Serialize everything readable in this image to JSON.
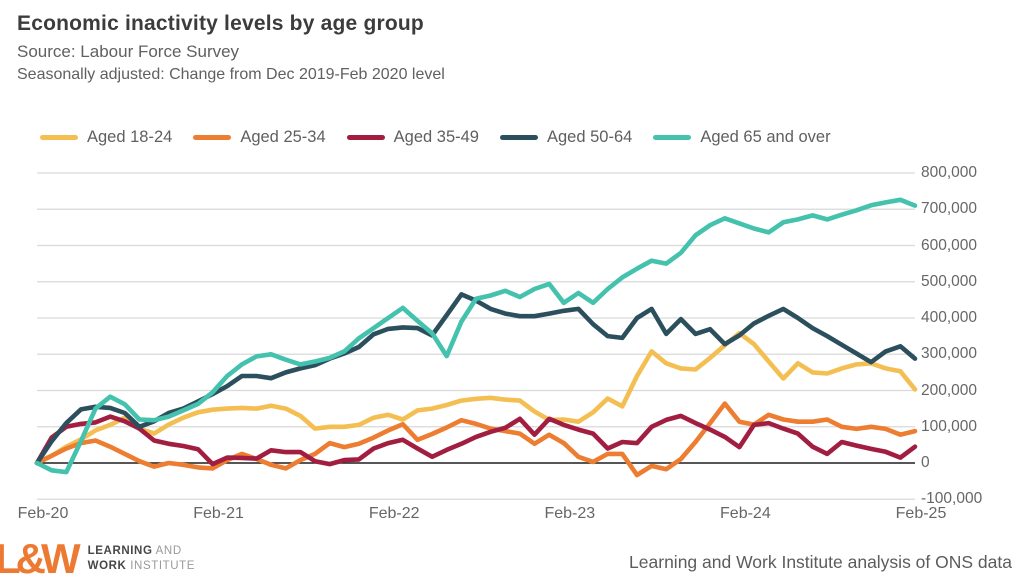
{
  "header": {
    "title": "Economic inactivity levels by age group",
    "subtitle": "Source: Labour Force Survey",
    "note": "Seasonally adjusted: Change from Dec 2019-Feb 2020 level"
  },
  "legend": [
    {
      "label": "Aged 18-24",
      "color": "#F4BF52"
    },
    {
      "label": "Aged 25-34",
      "color": "#ED7D31"
    },
    {
      "label": "Aged 35-49",
      "color": "#A21E41"
    },
    {
      "label": "Aged 50-64",
      "color": "#2C4F5E"
    },
    {
      "label": "Aged 65 and over",
      "color": "#44C2AE"
    }
  ],
  "chart_data": {
    "type": "line",
    "title": "Economic inactivity levels by age group",
    "x": [
      "Feb-20",
      "Mar-20",
      "Apr-20",
      "May-20",
      "Jun-20",
      "Jul-20",
      "Aug-20",
      "Sep-20",
      "Oct-20",
      "Nov-20",
      "Dec-20",
      "Jan-21",
      "Feb-21",
      "Mar-21",
      "Apr-21",
      "May-21",
      "Jun-21",
      "Jul-21",
      "Aug-21",
      "Sep-21",
      "Oct-21",
      "Nov-21",
      "Dec-21",
      "Jan-22",
      "Feb-22",
      "Mar-22",
      "Apr-22",
      "May-22",
      "Jun-22",
      "Jul-22",
      "Aug-22",
      "Sep-22",
      "Oct-22",
      "Nov-22",
      "Dec-22",
      "Jan-23",
      "Feb-23",
      "Mar-23",
      "Apr-23",
      "May-23",
      "Jun-23",
      "Jul-23",
      "Aug-23",
      "Sep-23",
      "Oct-23",
      "Nov-23",
      "Dec-23",
      "Jan-24",
      "Feb-24",
      "Mar-24",
      "Apr-24",
      "May-24",
      "Jun-24",
      "Jul-24",
      "Aug-24",
      "Sep-24",
      "Oct-24",
      "Nov-24",
      "Dec-24",
      "Jan-25",
      "Feb-25"
    ],
    "x_tick_labels": [
      "Feb-20",
      "Feb-21",
      "Feb-22",
      "Feb-23",
      "Feb-24",
      "Feb-25"
    ],
    "x_tick_indices": [
      0,
      12,
      24,
      36,
      48,
      60
    ],
    "y_tick_labels": [
      "800,000",
      "700,000",
      "600,000",
      "500,000",
      "400,000",
      "300,000",
      "200,000",
      "100,000",
      "0",
      "-100,000"
    ],
    "y_tick_values": [
      800000,
      700000,
      600000,
      500000,
      400000,
      300000,
      200000,
      100000,
      0,
      -100000
    ],
    "ylim": [
      -100000,
      800000
    ],
    "grid": "horizontal",
    "legend_position": "top",
    "zero_line": true,
    "series": [
      {
        "name": "Aged 18-24",
        "color": "#F4BF52",
        "values": [
          0,
          20000,
          45000,
          65000,
          90000,
          105000,
          125000,
          95000,
          81000,
          106000,
          125000,
          140000,
          147000,
          150000,
          152000,
          150000,
          158000,
          150000,
          130000,
          95000,
          100000,
          100000,
          105000,
          125000,
          133000,
          120000,
          145000,
          150000,
          160000,
          172000,
          177000,
          180000,
          175000,
          172000,
          142000,
          119000,
          120000,
          114000,
          140000,
          178000,
          156000,
          240000,
          308000,
          275000,
          261000,
          258000,
          290000,
          325000,
          358000,
          328000,
          280000,
          233000,
          275000,
          250000,
          247000,
          261000,
          272000,
          275000,
          261000,
          253000,
          203000
        ]
      },
      {
        "name": "Aged 25-34",
        "color": "#ED7D31",
        "values": [
          0,
          20000,
          40000,
          55000,
          62000,
          45000,
          25000,
          5000,
          -10000,
          0,
          -5000,
          -12000,
          -15000,
          8000,
          25000,
          11000,
          -5000,
          -15000,
          8000,
          25000,
          55000,
          44000,
          53000,
          70000,
          90000,
          107000,
          64000,
          80000,
          98000,
          118000,
          108000,
          95000,
          88000,
          81000,
          53000,
          78000,
          55000,
          17000,
          3000,
          25000,
          25000,
          -33000,
          -8000,
          -17000,
          11000,
          58000,
          110000,
          164000,
          114000,
          106000,
          133000,
          120000,
          114000,
          114000,
          120000,
          100000,
          94000,
          100000,
          94000,
          78000,
          88000
        ]
      },
      {
        "name": "Aged 35-49",
        "color": "#A21E41",
        "values": [
          0,
          70000,
          100000,
          108000,
          112000,
          128000,
          115000,
          95000,
          62000,
          53000,
          47000,
          38000,
          -3000,
          15000,
          14000,
          12000,
          35000,
          30000,
          30000,
          5000,
          -3000,
          8000,
          10000,
          40000,
          55000,
          64000,
          40000,
          17000,
          36000,
          53000,
          72000,
          86000,
          97000,
          122000,
          78000,
          122000,
          105000,
          92000,
          81000,
          40000,
          58000,
          55000,
          100000,
          119000,
          130000,
          110000,
          92000,
          72000,
          44000,
          105000,
          110000,
          95000,
          81000,
          45000,
          25000,
          58000,
          48000,
          39000,
          31000,
          15000,
          45000
        ]
      },
      {
        "name": "Aged 50-64",
        "color": "#2C4F5E",
        "values": [
          0,
          60000,
          110000,
          148000,
          155000,
          152000,
          138000,
          100000,
          115000,
          138000,
          150000,
          170000,
          190000,
          212000,
          240000,
          240000,
          234000,
          250000,
          261000,
          270000,
          288000,
          302000,
          320000,
          355000,
          370000,
          374000,
          372000,
          352000,
          408000,
          465000,
          448000,
          425000,
          412000,
          405000,
          405000,
          412000,
          420000,
          425000,
          383000,
          350000,
          345000,
          400000,
          425000,
          356000,
          397000,
          356000,
          369000,
          328000,
          352000,
          385000,
          406000,
          425000,
          400000,
          372000,
          350000,
          326000,
          302000,
          278000,
          308000,
          322000,
          288000
        ]
      },
      {
        "name": "Aged 65 and over",
        "color": "#44C2AE",
        "values": [
          0,
          -20000,
          -25000,
          60000,
          150000,
          183000,
          162000,
          120000,
          118000,
          128000,
          145000,
          163000,
          195000,
          240000,
          272000,
          294000,
          300000,
          285000,
          272000,
          280000,
          290000,
          308000,
          344000,
          372000,
          400000,
          428000,
          392000,
          358000,
          295000,
          390000,
          453000,
          462000,
          475000,
          458000,
          480000,
          494000,
          442000,
          469000,
          442000,
          480000,
          512000,
          536000,
          558000,
          550000,
          580000,
          628000,
          656000,
          675000,
          661000,
          647000,
          636000,
          664000,
          672000,
          683000,
          672000,
          685000,
          697000,
          711000,
          719000,
          726000,
          710000
        ]
      }
    ]
  },
  "footer": {
    "logo_text": "L&W",
    "logo_line1_bold": "LEARNING",
    "logo_line1_rest": " AND",
    "logo_line2_bold": "WORK",
    "logo_line2_rest": " INSTITUTE",
    "attribution": "Learning and Work Institute analysis of ONS data"
  },
  "colors": {
    "grid": "#d9d9d9",
    "zero_line": "#1f1f1f",
    "axis_text": "#666666",
    "title_text": "#3c3c3c",
    "logo_orange": "#ED7A33"
  }
}
